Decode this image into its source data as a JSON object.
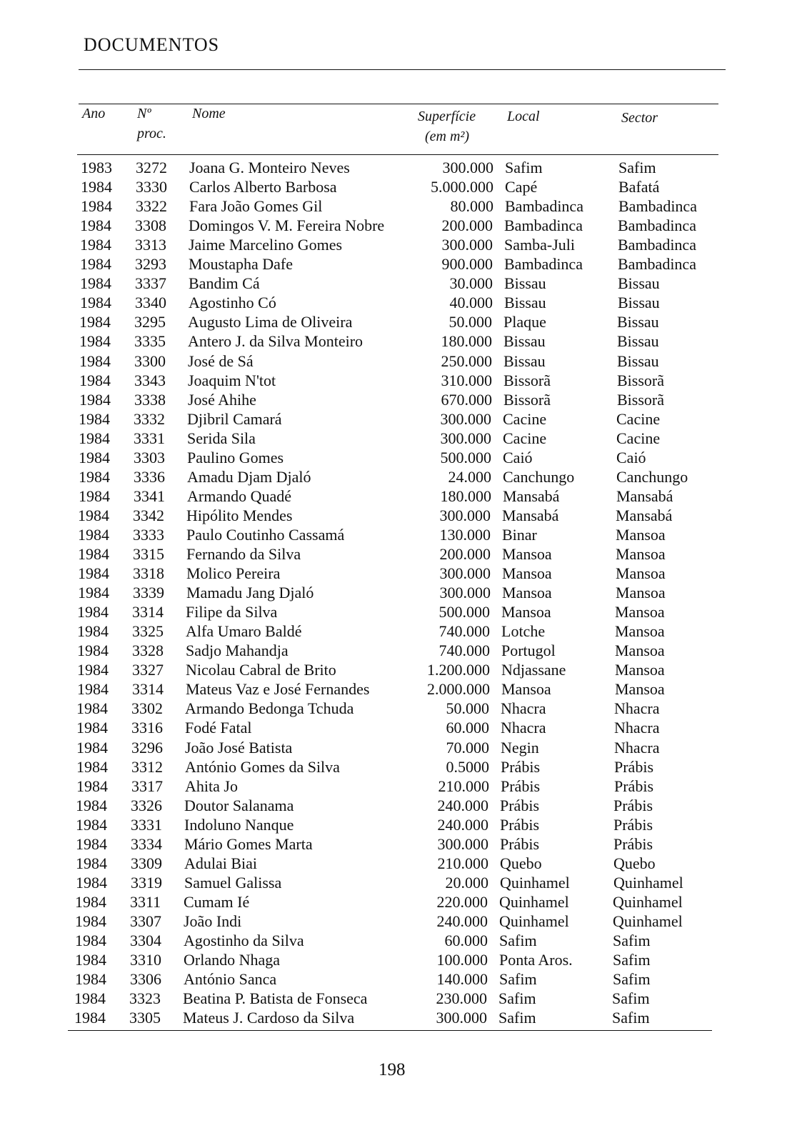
{
  "header": {
    "title": "DOCUMENTOS"
  },
  "table": {
    "columns": {
      "ano": "Ano",
      "proc_1": "Nº",
      "proc_2": "proc.",
      "nome": "Nome",
      "sup_1": "Superfície",
      "sup_2": "(em m²)",
      "local": "Local",
      "sector": "Sector"
    },
    "rows": [
      [
        "1983",
        "3272",
        "Joana G. Monteiro Neves",
        "300.000",
        "Safim",
        "Safim"
      ],
      [
        "1984",
        "3330",
        "Carlos Alberto Barbosa",
        "5.000.000",
        "Capé",
        "Bafatá"
      ],
      [
        "1984",
        "3322",
        "Fara João Gomes Gil",
        "80.000",
        "Bambadinca",
        "Bambadinca"
      ],
      [
        "1984",
        "3308",
        "Domingos V. M. Fereira Nobre",
        "200.000",
        "Bambadinca",
        "Bambadinca"
      ],
      [
        "1984",
        "3313",
        "Jaime Marcelino Gomes",
        "300.000",
        "Samba-Juli",
        "Bambadinca"
      ],
      [
        "1984",
        "3293",
        "Moustapha Dafe",
        "900.000",
        "Bambadinca",
        "Bambadinca"
      ],
      [
        "1984",
        "3337",
        "Bandim Cá",
        "30.000",
        "Bissau",
        "Bissau"
      ],
      [
        "1984",
        "3340",
        "Agostinho Có",
        "40.000",
        "Bissau",
        "Bissau"
      ],
      [
        "1984",
        "3295",
        "Augusto Lima de Oliveira",
        "50.000",
        "Plaque",
        "Bissau"
      ],
      [
        "1984",
        "3335",
        "Antero J. da Silva Monteiro",
        "180.000",
        "Bissau",
        "Bissau"
      ],
      [
        "1984",
        "3300",
        "José de Sá",
        "250.000",
        "Bissau",
        "Bissau"
      ],
      [
        "1984",
        "3343",
        "Joaquim N'tot",
        "310.000",
        "Bissorã",
        "Bissorã"
      ],
      [
        "1984",
        "3338",
        "José Ahihe",
        "670.000",
        "Bissorã",
        "Bissorã"
      ],
      [
        "1984",
        "3332",
        "Djibril Camará",
        "300.000",
        "Cacine",
        "Cacine"
      ],
      [
        "1984",
        "3331",
        "Serida Sila",
        "300.000",
        "Cacine",
        "Cacine"
      ],
      [
        "1984",
        "3303",
        "Paulino Gomes",
        "500.000",
        "Caió",
        "Caió"
      ],
      [
        "1984",
        "3336",
        "Amadu Djam Djaló",
        "24.000",
        "Canchungo",
        "Canchungo"
      ],
      [
        "1984",
        "3341",
        "Armando Quadé",
        "180.000",
        "Mansabá",
        "Mansabá"
      ],
      [
        "1984",
        "3342",
        "Hipólito Mendes",
        "300.000",
        "Mansabá",
        "Mansabá"
      ],
      [
        "1984",
        "3333",
        "Paulo Coutinho Cassamá",
        "130.000",
        "Binar",
        "Mansoa"
      ],
      [
        "1984",
        "3315",
        "Fernando da Silva",
        "200.000",
        "Mansoa",
        "Mansoa"
      ],
      [
        "1984",
        "3318",
        "Molico Pereira",
        "300.000",
        "Mansoa",
        "Mansoa"
      ],
      [
        "1984",
        "3339",
        "Mamadu Jang Djaló",
        "300.000",
        "Mansoa",
        "Mansoa"
      ],
      [
        "1984",
        "3314",
        "Filipe da Silva",
        "500.000",
        "Mansoa",
        "Mansoa"
      ],
      [
        "1984",
        "3325",
        "Alfa Umaro Baldé",
        "740.000",
        "Lotche",
        "Mansoa"
      ],
      [
        "1984",
        "3328",
        "Sadjo Mahandja",
        "740.000",
        "Portugol",
        "Mansoa"
      ],
      [
        "1984",
        "3327",
        "Nicolau Cabral de Brito",
        "1.200.000",
        "Ndjassane",
        "Mansoa"
      ],
      [
        "1984",
        "3314",
        "Mateus Vaz e José Fernandes",
        "2.000.000",
        "Mansoa",
        "Mansoa"
      ],
      [
        "1984",
        "3302",
        "Armando Bedonga Tchuda",
        "50.000",
        "Nhacra",
        "Nhacra"
      ],
      [
        "1984",
        "3316",
        "Fodé Fatal",
        "60.000",
        "Nhacra",
        "Nhacra"
      ],
      [
        "1984",
        "3296",
        "João José Batista",
        "70.000",
        "Negin",
        "Nhacra"
      ],
      [
        "1984",
        "3312",
        "António Gomes da Silva",
        "0.5000",
        "Prábis",
        "Prábis"
      ],
      [
        "1984",
        "3317",
        "Ahita Jo",
        "210.000",
        "Prábis",
        "Prábis"
      ],
      [
        "1984",
        "3326",
        "Doutor Salanama",
        "240.000",
        "Prábis",
        "Prábis"
      ],
      [
        "1984",
        "3331",
        "Indoluno Nanque",
        "240.000",
        "Prábis",
        "Prábis"
      ],
      [
        "1984",
        "3334",
        "Mário Gomes Marta",
        "300.000",
        "Prábis",
        "Prábis"
      ],
      [
        "1984",
        "3309",
        "Adulai Biai",
        "210.000",
        "Quebo",
        "Quebo"
      ],
      [
        "1984",
        "3319",
        "Samuel Galissa",
        "20.000",
        "Quinhamel",
        "Quinhamel"
      ],
      [
        "1984",
        "3311",
        "Cumam Ié",
        "220.000",
        "Quinhamel",
        "Quinhamel"
      ],
      [
        "1984",
        "3307",
        "João Indi",
        "240.000",
        "Quinhamel",
        "Quinhamel"
      ],
      [
        "1984",
        "3304",
        "Agostinho da Silva",
        "60.000",
        "Safim",
        "Safim"
      ],
      [
        "1984",
        "3310",
        "Orlando Nhaga",
        "100.000",
        "Ponta Aros.",
        "Safim"
      ],
      [
        "1984",
        "3306",
        "António Sanca",
        "140.000",
        "Safim",
        "Safim"
      ],
      [
        "1984",
        "3323",
        "Beatina P. Batista de Fonseca",
        "230.000",
        "Safim",
        "Safim"
      ],
      [
        "1984",
        "3305",
        "Mateus J. Cardoso da Silva",
        "300.000",
        "Safim",
        "Safim"
      ]
    ]
  },
  "footer": {
    "page_number": "198"
  }
}
